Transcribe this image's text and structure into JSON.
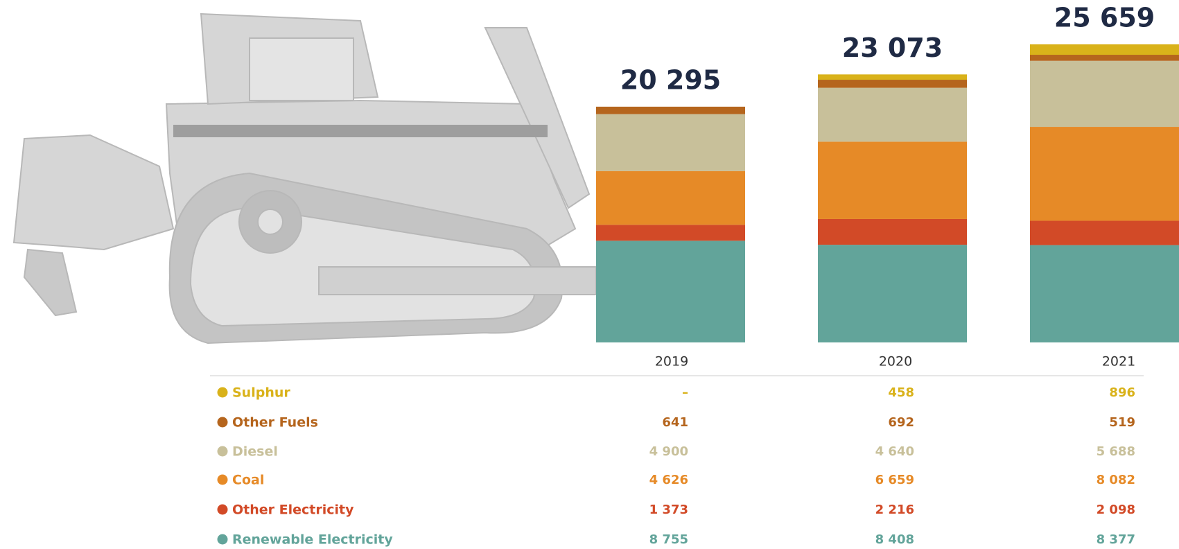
{
  "chart_data": {
    "type": "stacked-bar",
    "categories": [
      "2019",
      "2020",
      "2021"
    ],
    "totals": {
      "values": [
        20295,
        23073,
        25659
      ],
      "value_labels": [
        "20 295",
        "23 073",
        "25 659"
      ]
    },
    "series": [
      {
        "name": "Sulphur",
        "color": "#d9b21a",
        "values": [
          null,
          458,
          896
        ],
        "value_labels": [
          "–",
          "458",
          "896"
        ]
      },
      {
        "name": "Other Fuels",
        "color": "#b5651d",
        "values": [
          641,
          692,
          519
        ]
      },
      {
        "name": "Diesel",
        "color": "#c8c09a",
        "values": [
          4900,
          4640,
          5688
        ],
        "value_labels": [
          "4 900",
          "4 640",
          "5 688"
        ]
      },
      {
        "name": "Coal",
        "color": "#e68a27",
        "values": [
          4626,
          6659,
          8082
        ],
        "value_labels": [
          "4 626",
          "6 659",
          "8 082"
        ]
      },
      {
        "name": "Other Electricity",
        "color": "#d24a27",
        "values": [
          1373,
          2216,
          2098
        ],
        "value_labels": [
          "1 373",
          "2 216",
          "2 098"
        ]
      },
      {
        "name": "Renewable Electricity",
        "color": "#62a49a",
        "values": [
          8755,
          8408,
          8377
        ],
        "value_labels": [
          "8 755",
          "8 408",
          "8 377"
        ]
      }
    ]
  }
}
